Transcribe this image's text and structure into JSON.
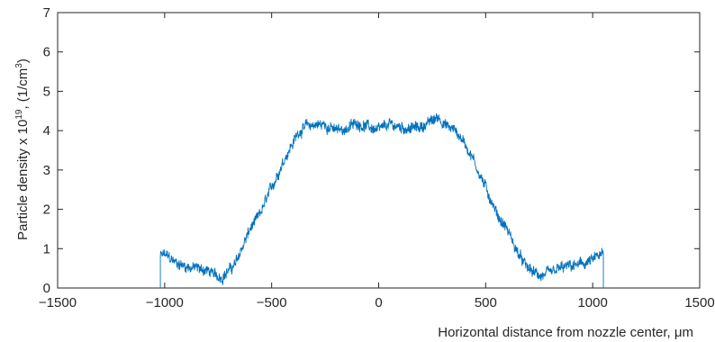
{
  "chart_data": {
    "type": "line",
    "title": "",
    "xlabel": "Horizontal distance from nozzle center, μm",
    "ylabel_parts": {
      "prefix": "Particle density x 10",
      "exponent": "19",
      "middle": ", (1/cm",
      "unit_exponent": "3",
      "suffix": ")"
    },
    "xlim": [
      -1500,
      1500
    ],
    "ylim": [
      0,
      7
    ],
    "xticks": [
      -1500,
      -1000,
      -500,
      0,
      500,
      1000,
      1500
    ],
    "xtick_labels": [
      "−1500",
      "−1000",
      "−500",
      "0",
      "500",
      "1000",
      "1500"
    ],
    "yticks": [
      0,
      1,
      2,
      3,
      4,
      5,
      6,
      7
    ],
    "ytick_labels": [
      "0",
      "1",
      "2",
      "3",
      "4",
      "5",
      "6",
      "7"
    ],
    "grid": false,
    "series": [
      {
        "color": "#0072BD",
        "x": [
          -1020,
          -1000,
          -950,
          -900,
          -850,
          -800,
          -760,
          -730,
          -700,
          -670,
          -640,
          -600,
          -560,
          -520,
          -480,
          -440,
          -400,
          -370,
          -340,
          -300,
          -250,
          -200,
          -150,
          -100,
          -50,
          0,
          50,
          100,
          150,
          200,
          250,
          280,
          320,
          360,
          400,
          440,
          480,
          520,
          560,
          600,
          640,
          680,
          720,
          760,
          800,
          850,
          900,
          950,
          1000,
          1040,
          1050
        ],
        "y": [
          0.8,
          0.85,
          0.65,
          0.55,
          0.5,
          0.45,
          0.3,
          0.3,
          0.45,
          0.6,
          1.0,
          1.5,
          1.8,
          2.3,
          2.8,
          3.3,
          3.7,
          4.0,
          4.1,
          4.15,
          4.15,
          4.0,
          4.05,
          4.2,
          4.1,
          4.0,
          4.15,
          4.1,
          4.05,
          4.1,
          4.25,
          4.35,
          4.1,
          4.0,
          3.7,
          3.3,
          2.8,
          2.3,
          1.8,
          1.5,
          1.0,
          0.6,
          0.4,
          0.3,
          0.35,
          0.5,
          0.55,
          0.6,
          0.7,
          0.85,
          0.8
        ]
      }
    ]
  }
}
